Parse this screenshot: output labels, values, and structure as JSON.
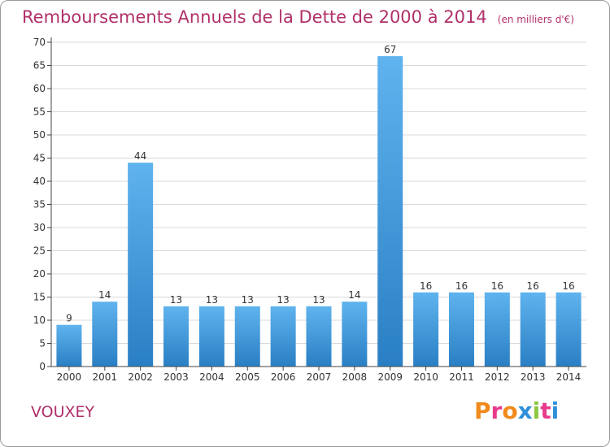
{
  "title": {
    "main": "Remboursements Annuels de la Dette de 2000 à 2014",
    "unit": "(en milliers d'€)"
  },
  "place_name": "VOUXEY",
  "brand": {
    "text": "Proxiti",
    "letter_colors": [
      "#f08a1c",
      "#e83a8c",
      "#f08a1c",
      "#2f8fd8",
      "#8dc63f",
      "#e83a8c",
      "#2f8fd8"
    ]
  },
  "colors": {
    "title": "#b0306a",
    "bar_light": "#5fb3ee",
    "bar_dark": "#2a7fc4",
    "grid": "#d8d8d8",
    "axis": "#444444"
  },
  "chart_data": {
    "type": "bar",
    "categories": [
      "2000",
      "2001",
      "2002",
      "2003",
      "2004",
      "2005",
      "2006",
      "2007",
      "2008",
      "2009",
      "2010",
      "2011",
      "2012",
      "2013",
      "2014"
    ],
    "values": [
      9,
      14,
      44,
      13,
      13,
      13,
      13,
      13,
      14,
      67,
      16,
      16,
      16,
      16,
      16
    ],
    "title": "Remboursements Annuels de la Dette de 2000 à 2014",
    "xlabel": "",
    "ylabel": "",
    "ylim": [
      0,
      70
    ],
    "yticks": [
      0,
      5,
      10,
      15,
      20,
      25,
      30,
      35,
      40,
      45,
      50,
      55,
      60,
      65,
      70
    ],
    "grid": "horizontal",
    "data_labels": true
  }
}
